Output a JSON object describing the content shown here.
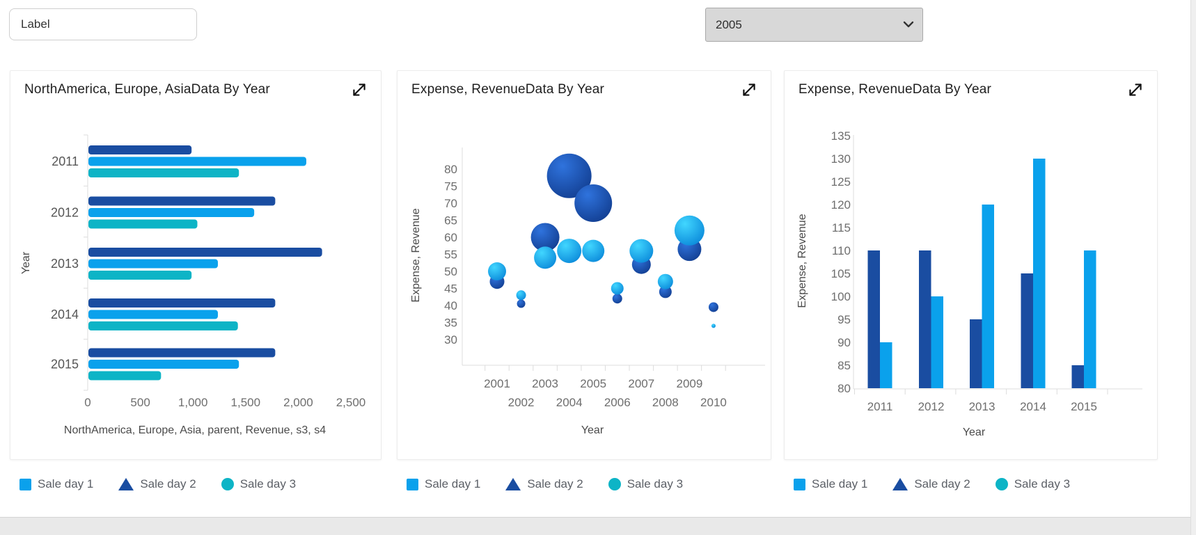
{
  "topbar": {
    "label_value": "Label",
    "year_select": {
      "value": "2005",
      "options": [
        "2005"
      ]
    }
  },
  "colors": {
    "light_blue": "#0aa1ec",
    "dark_blue": "#1a4da1",
    "teal": "#0db4c6",
    "bubble_light_inner": "#41d6ff",
    "bubble_light_outer": "#0b8ada",
    "bubble_dark_inner": "#2f73dd",
    "bubble_dark_outer": "#123e91"
  },
  "cards": [
    {
      "title": "NorthAmerica, Europe, AsiaData By Year",
      "expand_icon": "expand-arrows-icon"
    },
    {
      "title": "Expense, RevenueData By Year",
      "expand_icon": "expand-arrows-icon"
    },
    {
      "title": "Expense, RevenueData By Year",
      "expand_icon": "expand-arrows-icon"
    }
  ],
  "legend": {
    "items": [
      {
        "label": "Sale day 1",
        "marker": "square",
        "color_key": "light_blue"
      },
      {
        "label": "Sale day 2",
        "marker": "triangle",
        "color_key": "dark_blue"
      },
      {
        "label": "Sale day 3",
        "marker": "circle",
        "color_key": "teal"
      }
    ]
  },
  "chart_data": [
    {
      "type": "bar",
      "orientation": "horizontal",
      "title": "NorthAmerica, Europe, AsiaData By Year",
      "categories": [
        "2011",
        "2012",
        "2013",
        "2014",
        "2015"
      ],
      "series": [
        {
          "name": "Sale day 2",
          "color_key": "dark_blue",
          "values": [
            980,
            1775,
            2220,
            1775,
            1775
          ]
        },
        {
          "name": "Sale day 1",
          "color_key": "light_blue",
          "values": [
            2070,
            1575,
            1230,
            1230,
            1430
          ]
        },
        {
          "name": "Sale day 3",
          "color_key": "teal",
          "values": [
            1430,
            1035,
            980,
            1420,
            690
          ]
        }
      ],
      "xlabel": "NorthAmerica, Europe, Asia, parent, Revenue, s3, s4",
      "ylabel": "Year",
      "xlim": [
        0,
        2500
      ],
      "xticks": [
        "0",
        "500",
        "1,000",
        "1,500",
        "2,000",
        "2,500"
      ],
      "grid": false
    },
    {
      "type": "bubble",
      "title": "Expense, RevenueData By Year",
      "x": [
        "2001",
        "2002",
        "2003",
        "2004",
        "2005",
        "2006",
        "2007",
        "2008",
        "2009",
        "2010"
      ],
      "series": [
        {
          "name": "Sale day 2",
          "color_key": "bubble_dark",
          "points": [
            {
              "x": "2001",
              "y": 47,
              "r": 10.5
            },
            {
              "x": "2002",
              "y": 40.5,
              "r": 6
            },
            {
              "x": "2003",
              "y": 60,
              "r": 20.5
            },
            {
              "x": "2004",
              "y": 78,
              "r": 32
            },
            {
              "x": "2005",
              "y": 70,
              "r": 27
            },
            {
              "x": "2006",
              "y": 42,
              "r": 7
            },
            {
              "x": "2007",
              "y": 52,
              "r": 13.5
            },
            {
              "x": "2008",
              "y": 44,
              "r": 9
            },
            {
              "x": "2009",
              "y": 56.5,
              "r": 17
            },
            {
              "x": "2010",
              "y": 39.5,
              "r": 7
            }
          ]
        },
        {
          "name": "Sale day 1",
          "color_key": "bubble_light",
          "points": [
            {
              "x": "2001",
              "y": 50,
              "r": 13
            },
            {
              "x": "2002",
              "y": 43,
              "r": 7
            },
            {
              "x": "2003",
              "y": 54,
              "r": 16
            },
            {
              "x": "2004",
              "y": 56,
              "r": 17.5
            },
            {
              "x": "2005",
              "y": 56,
              "r": 16
            },
            {
              "x": "2006",
              "y": 45,
              "r": 9
            },
            {
              "x": "2007",
              "y": 56,
              "r": 17
            },
            {
              "x": "2008",
              "y": 47,
              "r": 11
            },
            {
              "x": "2009",
              "y": 62,
              "r": 21.5
            },
            {
              "x": "2010",
              "y": 34,
              "r": 3
            }
          ]
        }
      ],
      "xlabel": "Year",
      "ylabel": "Expense, Revenue",
      "ylim": [
        30,
        80
      ],
      "ytick_step": 5,
      "grid": false
    },
    {
      "type": "bar",
      "orientation": "vertical",
      "title": "Expense, RevenueData By Year",
      "categories": [
        "2011",
        "2012",
        "2013",
        "2014",
        "2015"
      ],
      "series": [
        {
          "name": "Sale day 2",
          "color_key": "dark_blue",
          "values": [
            110,
            110,
            95,
            105,
            85
          ]
        },
        {
          "name": "Sale day 1",
          "color_key": "light_blue",
          "values": [
            90,
            100,
            120,
            130,
            110
          ]
        }
      ],
      "xlabel": "Year",
      "ylabel": "Expense, Revenue",
      "ylim": [
        80,
        135
      ],
      "ytick_step": 5,
      "grid": false
    }
  ]
}
